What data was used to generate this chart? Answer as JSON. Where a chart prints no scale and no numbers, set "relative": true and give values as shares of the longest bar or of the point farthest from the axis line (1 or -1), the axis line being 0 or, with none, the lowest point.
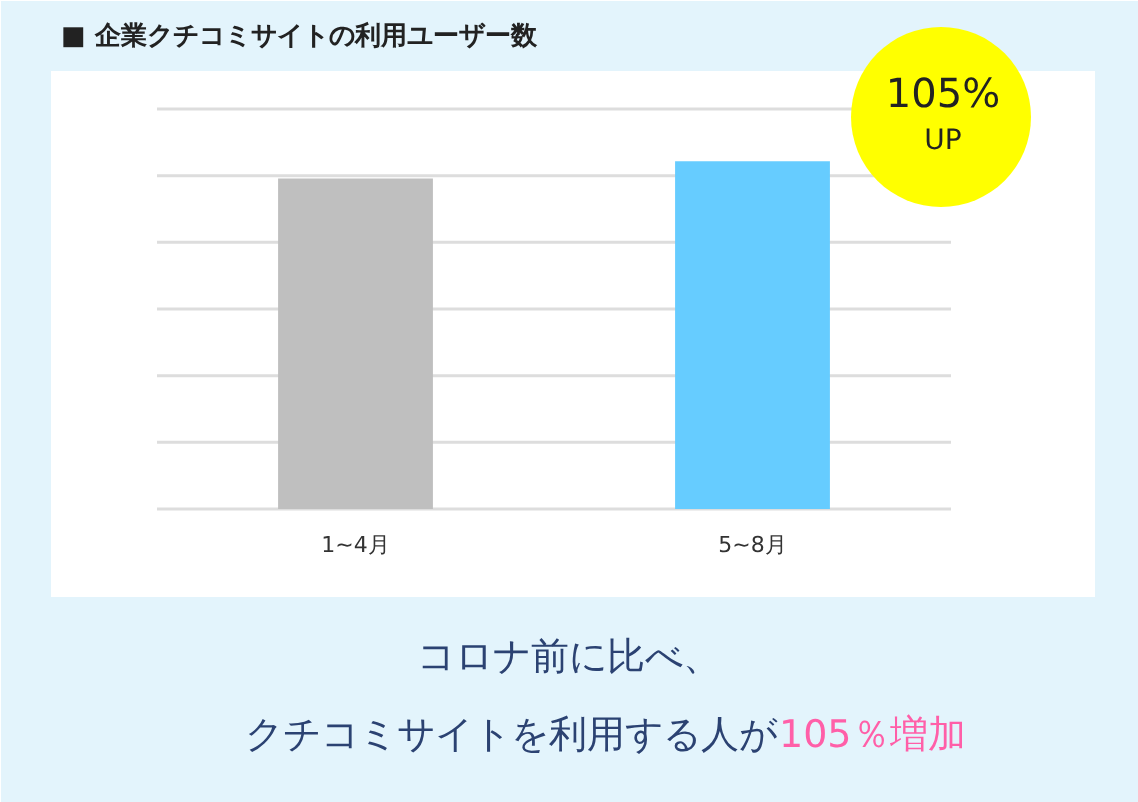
{
  "chart_data": {
    "type": "bar",
    "title": "■ 企業クチコミサイトの利用ユーザー数",
    "categories": [
      "1~4月",
      "5~8月"
    ],
    "values": [
      0.95,
      1
    ],
    "colors": [
      "#bfbfbf",
      "#66ccff"
    ],
    "relative": true,
    "grid": "y",
    "annotations": [
      "105% UP",
      "コロナ前に比べ、",
      "クチコミサイトを利用する人が",
      "105％増加"
    ]
  }
}
